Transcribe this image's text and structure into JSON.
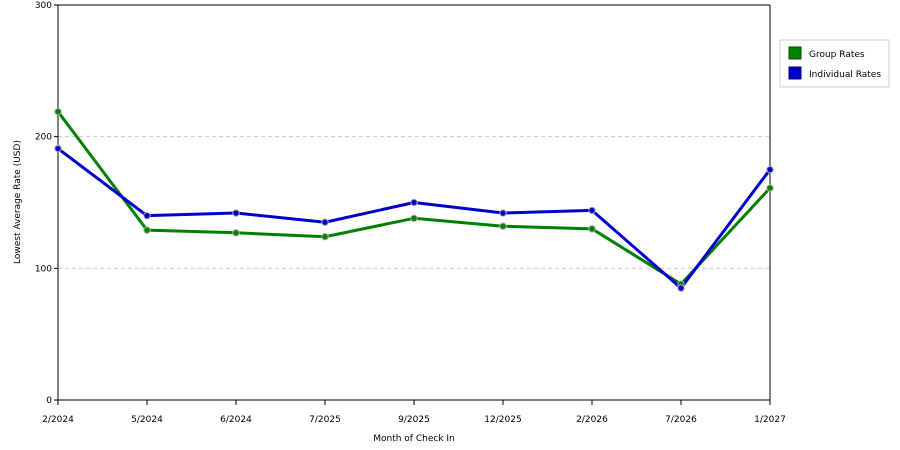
{
  "chart_data": {
    "type": "line",
    "title": "",
    "xlabel": "Month of Check In",
    "ylabel": "Lowest Average Rate (USD)",
    "categories": [
      "2/2024",
      "5/2024",
      "6/2024",
      "7/2025",
      "9/2025",
      "12/2025",
      "2/2026",
      "7/2026",
      "1/2027"
    ],
    "ylim": [
      0,
      300
    ],
    "yticks": [
      0,
      100,
      200,
      300
    ],
    "grid": true,
    "legend_position": "top-right",
    "series": [
      {
        "name": "Group Rates",
        "color": "#008000",
        "values": [
          219,
          129,
          127,
          124,
          138,
          132,
          130,
          88,
          161
        ]
      },
      {
        "name": "Individual Rates",
        "color": "#0000cc",
        "values": [
          191,
          140,
          142,
          135,
          150,
          142,
          144,
          85,
          175
        ]
      }
    ]
  }
}
